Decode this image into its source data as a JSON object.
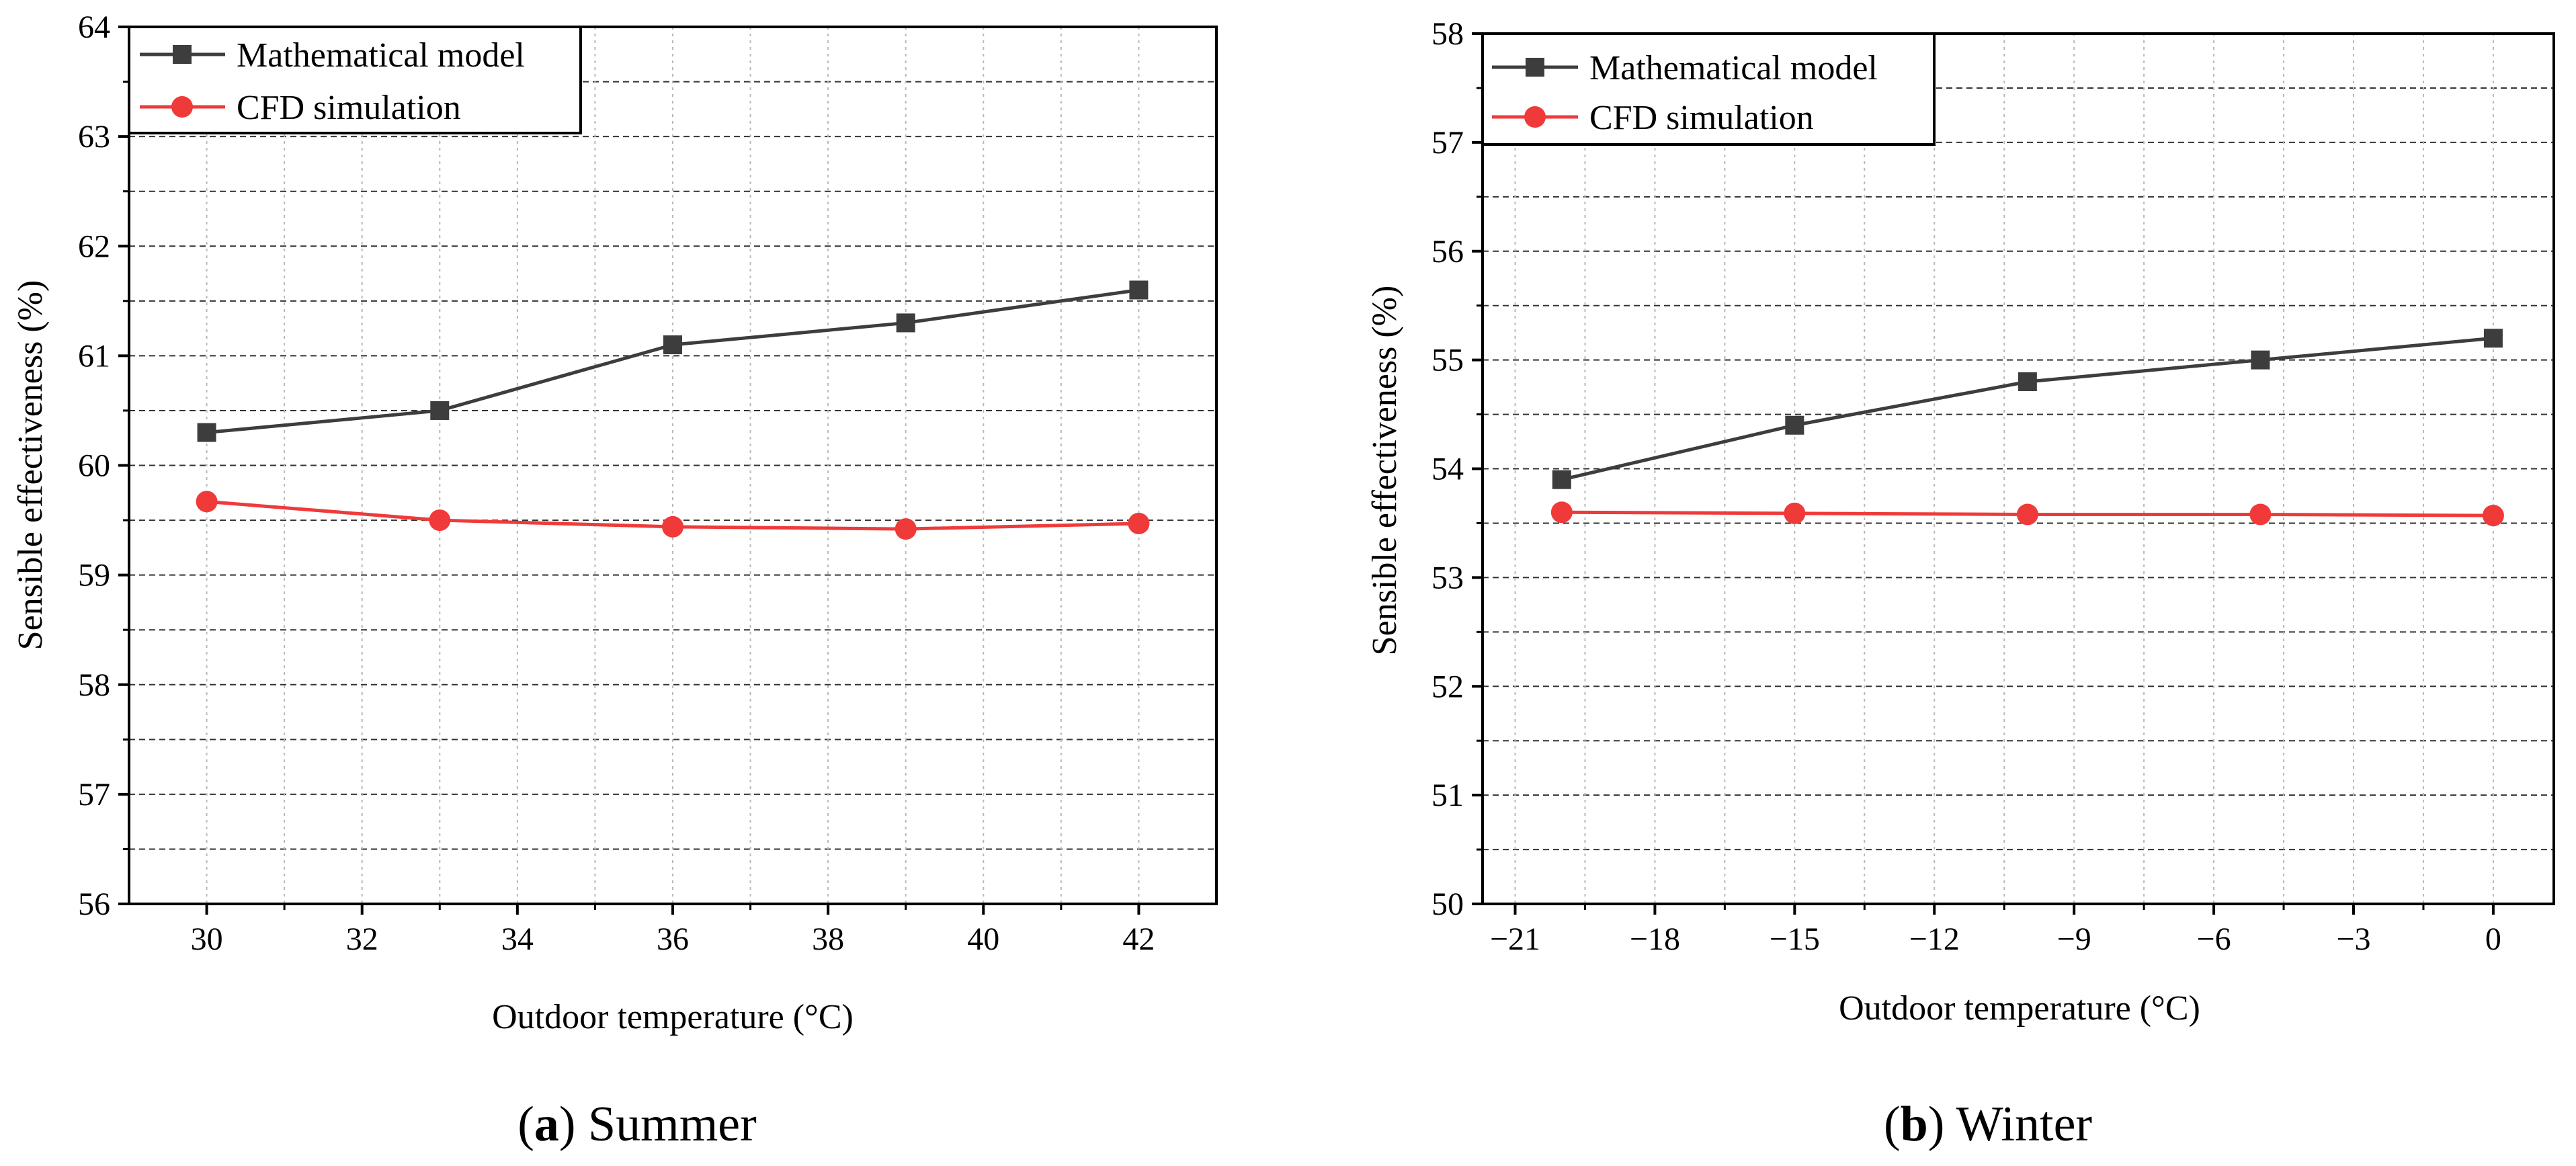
{
  "chart_data": [
    {
      "id": "a",
      "type": "line",
      "caption": {
        "letter": "a",
        "open": "(",
        "close": ")",
        "text": " Summer"
      },
      "xlabel": "Outdoor temperature (°C)",
      "ylabel": "Sensible effectiveness (%)",
      "xlim": [
        29,
        43
      ],
      "ylim": [
        56,
        64
      ],
      "xticks": [
        30,
        32,
        34,
        36,
        38,
        40,
        42
      ],
      "xtick_labels": [
        "30",
        "32",
        "34",
        "36",
        "38",
        "40",
        "42"
      ],
      "yticks": [
        56,
        57,
        58,
        59,
        60,
        61,
        62,
        63,
        64
      ],
      "ytick_labels": [
        "56",
        "57",
        "58",
        "59",
        "60",
        "61",
        "62",
        "63",
        "64"
      ],
      "grid": true,
      "legend_position": "top-left",
      "x": [
        30,
        33,
        36,
        39,
        42
      ],
      "series": [
        {
          "name": "Mathematical model",
          "marker": "square",
          "color": "#3d3d3d",
          "values": [
            60.3,
            60.5,
            61.1,
            61.3,
            61.6
          ]
        },
        {
          "name": "CFD simulation",
          "marker": "circle",
          "color": "#f03a3a",
          "values": [
            59.67,
            59.5,
            59.44,
            59.42,
            59.47
          ]
        }
      ]
    },
    {
      "id": "b",
      "type": "line",
      "caption": {
        "letter": "b",
        "open": "(",
        "close": ")",
        "text": " Winter"
      },
      "xlabel": "Outdoor temperature (°C)",
      "ylabel": "Sensible effectiveness (%)",
      "xlim": [
        -21.7,
        1.3
      ],
      "ylim": [
        50,
        58
      ],
      "xticks": [
        -21,
        -18,
        -15,
        -12,
        -9,
        -6,
        -3,
        0
      ],
      "xtick_labels": [
        "−21",
        "−18",
        "−15",
        "−12",
        "−9",
        "−6",
        "−3",
        "0"
      ],
      "yticks": [
        50,
        51,
        52,
        53,
        54,
        55,
        56,
        57,
        58
      ],
      "ytick_labels": [
        "50",
        "51",
        "52",
        "53",
        "54",
        "55",
        "56",
        "57",
        "58"
      ],
      "grid": true,
      "legend_position": "top-left",
      "x": [
        -20,
        -15,
        -10,
        -5,
        0
      ],
      "series": [
        {
          "name": "Mathematical model",
          "marker": "square",
          "color": "#3d3d3d",
          "values": [
            53.9,
            54.4,
            54.8,
            55.0,
            55.2
          ]
        },
        {
          "name": "CFD simulation",
          "marker": "circle",
          "color": "#f03a3a",
          "values": [
            53.6,
            53.59,
            53.58,
            53.58,
            53.57
          ]
        }
      ]
    }
  ]
}
